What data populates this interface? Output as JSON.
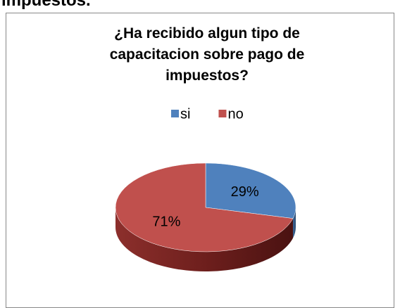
{
  "heading": "impuestos.",
  "chart_data": {
    "type": "pie",
    "title": "¿Ha recibido algun tipo de capacitacion sobre pago de impuestos?",
    "categories": [
      "si",
      "no"
    ],
    "values": [
      29,
      71
    ],
    "value_labels": [
      "29%",
      "71%"
    ],
    "colors": [
      "#4f81bd",
      "#c0504d"
    ],
    "legend": "top"
  }
}
